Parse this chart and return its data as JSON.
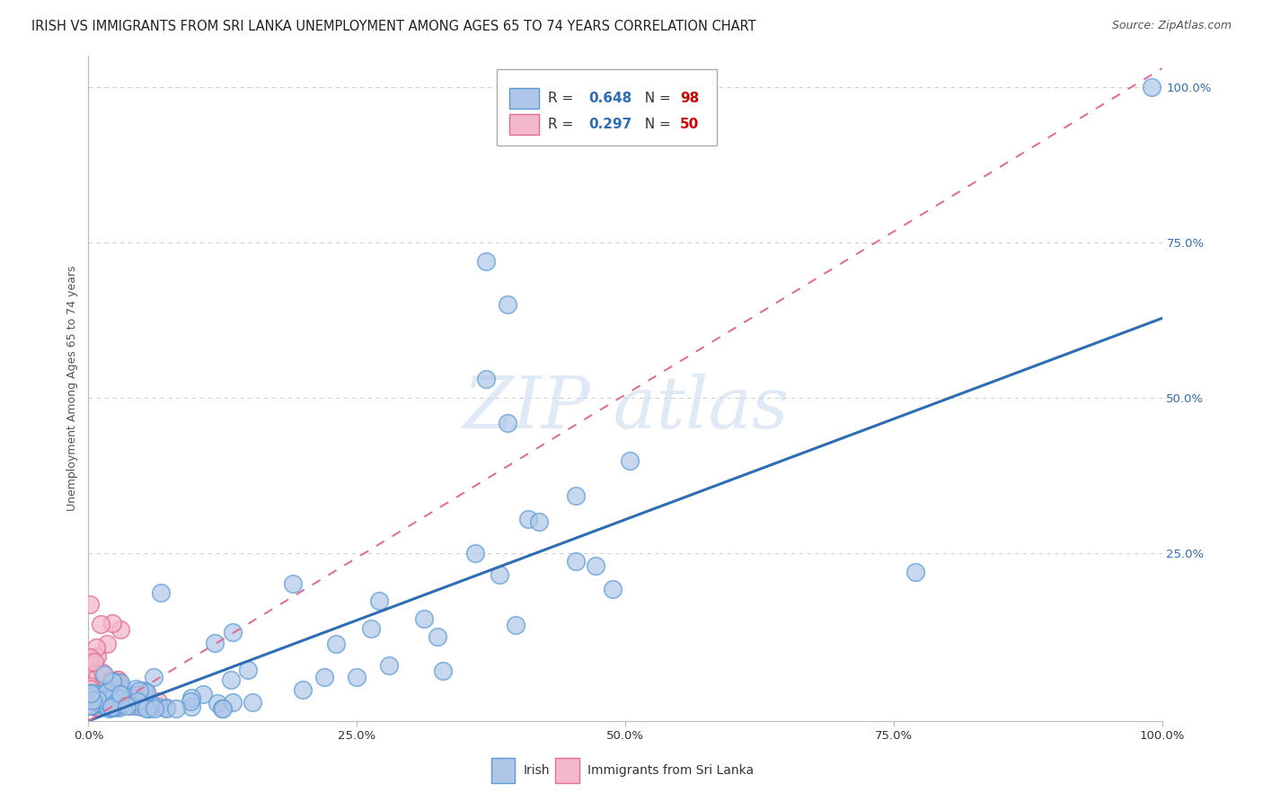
{
  "title": "IRISH VS IMMIGRANTS FROM SRI LANKA UNEMPLOYMENT AMONG AGES 65 TO 74 YEARS CORRELATION CHART",
  "source": "Source: ZipAtlas.com",
  "ylabel": "Unemployment Among Ages 65 to 74 years",
  "xlim": [
    0.0,
    1.0
  ],
  "ylim": [
    -0.02,
    1.05
  ],
  "irish_color": "#aec6e8",
  "irish_edge_color": "#5b9bd5",
  "srilanka_color": "#f4b8cb",
  "srilanka_edge_color": "#e07090",
  "irish_R": 0.648,
  "irish_N": 98,
  "srilanka_R": 0.297,
  "srilanka_N": 50,
  "regression_line_color": "#2e6db4",
  "regression_dashed_color": "#e07090",
  "background_color": "#ffffff",
  "grid_color": "#d0d0d0",
  "title_color": "#222222",
  "source_color": "#555555",
  "ytick_color": "#2e6db4",
  "xtick_color": "#333333",
  "irish_slope": 0.648,
  "irish_intercept": -0.02,
  "srilanka_slope": 1.05,
  "srilanka_intercept": -0.02
}
